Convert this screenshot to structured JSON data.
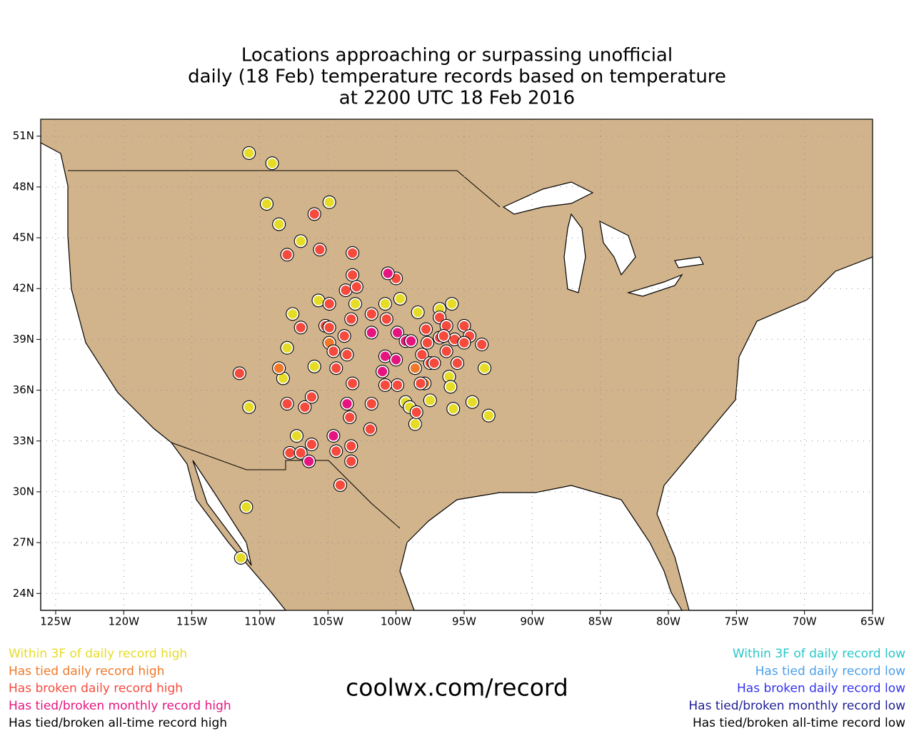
{
  "chart_data": {
    "type": "scatter",
    "title": [
      "Locations approaching or surpassing unofficial",
      "daily (18 Feb) temperature records based on temperature",
      "at 2200 UTC 18 Feb 2016"
    ],
    "credit": "coolwx.com/record",
    "xlim": [
      -126.1,
      -65
    ],
    "ylim": [
      23,
      52
    ],
    "xticks": [
      {
        "value": -125,
        "label": "125W"
      },
      {
        "value": -120,
        "label": "120W"
      },
      {
        "value": -115,
        "label": "115W"
      },
      {
        "value": -110,
        "label": "110W"
      },
      {
        "value": -105,
        "label": "105W"
      },
      {
        "value": -100,
        "label": "100W"
      },
      {
        "value": -95,
        "label": "95W"
      },
      {
        "value": -90,
        "label": "90W"
      },
      {
        "value": -85,
        "label": "85W"
      },
      {
        "value": -80,
        "label": "80W"
      },
      {
        "value": -75,
        "label": "75W"
      },
      {
        "value": -70,
        "label": "70W"
      },
      {
        "value": -65,
        "label": "65W"
      }
    ],
    "yticks": [
      {
        "value": 24,
        "label": "24N"
      },
      {
        "value": 27,
        "label": "27N"
      },
      {
        "value": 30,
        "label": "30N"
      },
      {
        "value": 33,
        "label": "33N"
      },
      {
        "value": 36,
        "label": "36N"
      },
      {
        "value": 39,
        "label": "39N"
      },
      {
        "value": 42,
        "label": "42N"
      },
      {
        "value": 45,
        "label": "45N"
      },
      {
        "value": 48,
        "label": "48N"
      },
      {
        "value": 51,
        "label": "51N"
      }
    ],
    "grid": true,
    "series": [
      {
        "name": "Within 3F of daily record high",
        "color": "#e6dc28",
        "legend": "left",
        "x": [
          -110.8,
          -109.1,
          -109.5,
          -104.9,
          -108.6,
          -107.0,
          -105.7,
          -103.0,
          -100.8,
          -99.7,
          -98.4,
          -96.8,
          -95.9,
          -107.6,
          -108.0,
          -106.0,
          -108.3,
          -96.1,
          -96.0,
          -93.5,
          -94.4,
          -95.8,
          -93.2,
          -97.5,
          -99.3,
          -99.0,
          -98.6,
          -110.8,
          -107.3,
          -111.0,
          -111.4
        ],
        "y": [
          50.0,
          49.4,
          47.0,
          47.1,
          45.8,
          44.8,
          41.3,
          41.1,
          41.1,
          41.4,
          40.6,
          40.8,
          41.1,
          40.5,
          38.5,
          37.4,
          36.7,
          36.8,
          36.2,
          37.3,
          35.3,
          34.9,
          34.5,
          35.4,
          35.3,
          35.0,
          34.0,
          35.0,
          33.3,
          29.1,
          26.1
        ]
      },
      {
        "name": "Has tied daily record high",
        "color": "#f07828",
        "legend": "left",
        "x": [
          -108.6,
          -104.9,
          -98.6,
          -97.9
        ],
        "y": [
          37.3,
          38.8,
          37.3,
          36.4
        ]
      },
      {
        "name": "Has broken daily record high",
        "color": "#f54a3c",
        "legend": "left",
        "x": [
          -106.0,
          -105.6,
          -108.0,
          -103.2,
          -103.2,
          -100.0,
          -103.7,
          -102.9,
          -104.9,
          -105.2,
          -104.9,
          -107.0,
          -103.3,
          -101.8,
          -100.7,
          -103.8,
          -104.6,
          -103.6,
          -104.4,
          -103.2,
          -99.9,
          -97.8,
          -96.8,
          -96.3,
          -95.0,
          -97.7,
          -96.8,
          -98.1,
          -97.5,
          -96.3,
          -95.7,
          -94.6,
          -93.7,
          -95.5,
          -111.5,
          -108.0,
          -106.7,
          -106.2,
          -101.8,
          -103.4,
          -98.5,
          -107.8,
          -107.0,
          -106.2,
          -103.3,
          -104.4,
          -103.3,
          -101.9,
          -104.1,
          -100.8,
          -98.2,
          -96.5,
          -95.0,
          -97.2
        ],
        "y": [
          46.4,
          44.3,
          44.0,
          44.1,
          42.8,
          42.6,
          41.9,
          42.1,
          41.1,
          39.8,
          39.7,
          39.7,
          40.2,
          40.5,
          40.2,
          39.2,
          38.3,
          38.1,
          37.3,
          36.4,
          36.3,
          39.6,
          40.3,
          39.8,
          39.8,
          38.8,
          39.1,
          38.1,
          37.6,
          38.3,
          39.0,
          39.2,
          38.7,
          37.6,
          37.0,
          35.2,
          35.0,
          35.6,
          35.2,
          34.4,
          34.7,
          32.3,
          32.3,
          32.8,
          32.7,
          32.4,
          31.8,
          33.7,
          30.4,
          36.3,
          36.4,
          39.2,
          38.8,
          37.6
        ]
      },
      {
        "name": "Has tied/broken monthly record high",
        "color": "#e6147f",
        "legend": "left",
        "x": [
          -100.6,
          -101.8,
          -99.9,
          -99.3,
          -98.9,
          -100.8,
          -100.0,
          -101.0,
          -103.6,
          -104.6,
          -106.4
        ],
        "y": [
          42.9,
          39.4,
          39.4,
          38.9,
          38.9,
          38.0,
          37.8,
          37.1,
          35.2,
          33.3,
          31.8
        ]
      },
      {
        "name": "Has tied/broken all-time record high",
        "color": "#000000",
        "legend": "left",
        "x": [],
        "y": []
      },
      {
        "name": "Within 3F of daily record low",
        "color": "#28c8c8",
        "legend": "right",
        "x": [],
        "y": []
      },
      {
        "name": "Has tied daily record low",
        "color": "#4a9ee8",
        "legend": "right",
        "x": [],
        "y": []
      },
      {
        "name": "Has broken daily record low",
        "color": "#3232f0",
        "legend": "right",
        "x": [],
        "y": []
      },
      {
        "name": "Has tied/broken monthly record low",
        "color": "#1e1e96",
        "legend": "right",
        "x": [],
        "y": []
      },
      {
        "name": "Has tied/broken all-time record low",
        "color": "#000000",
        "legend": "right",
        "x": [],
        "y": []
      }
    ]
  }
}
